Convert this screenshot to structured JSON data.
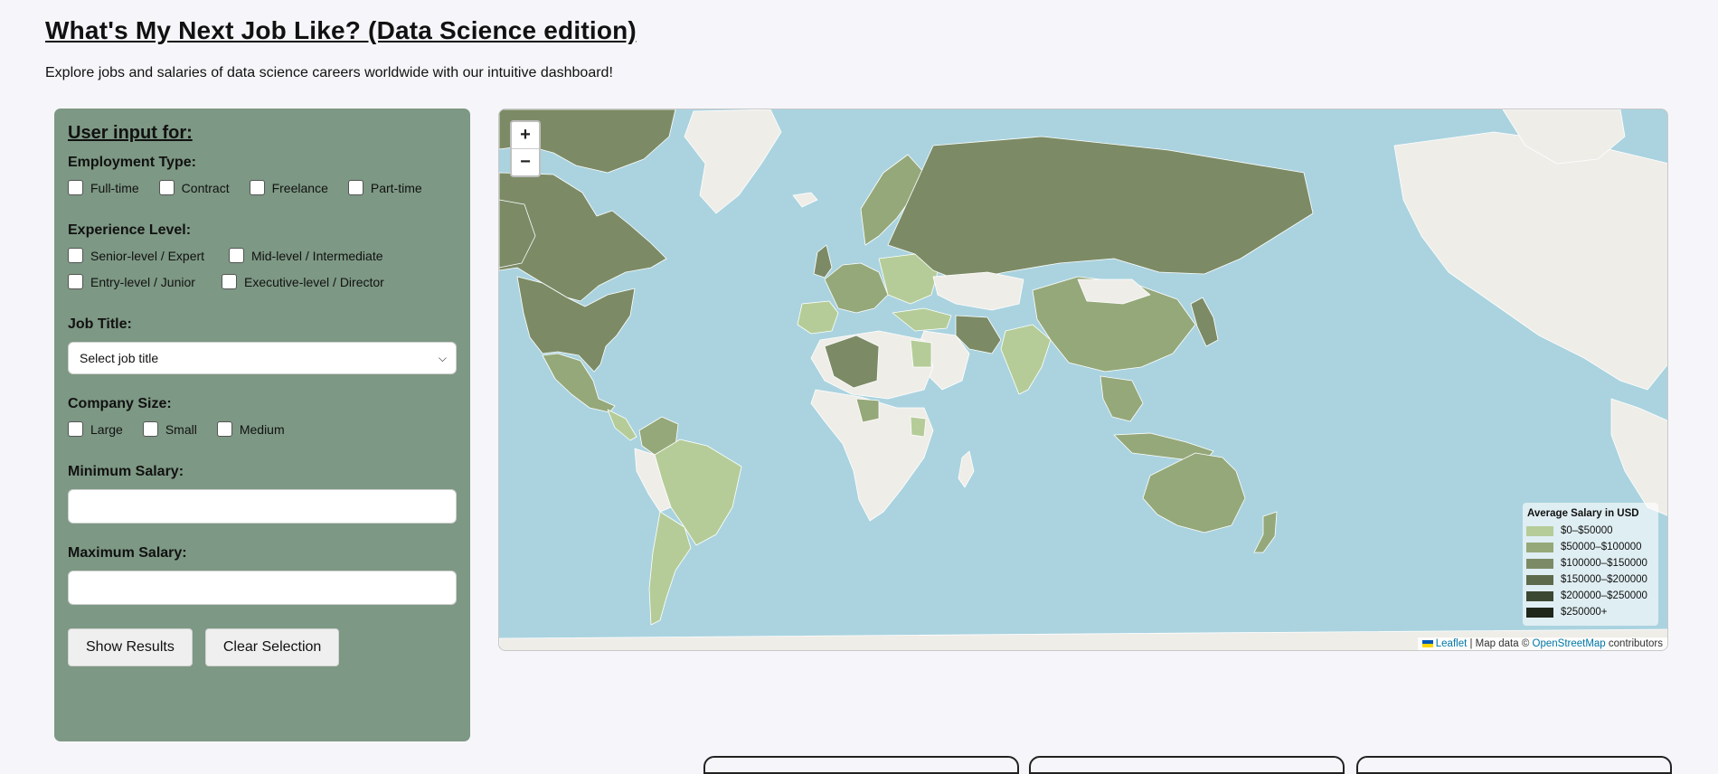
{
  "header": {
    "title": "What's My Next Job Like? (Data Science edition)",
    "subtitle": "Explore jobs and salaries of data science careers worldwide with our intuitive dashboard!"
  },
  "panel": {
    "heading": "User input for:",
    "employment_type": {
      "label": "Employment Type:",
      "options": [
        "Full-time",
        "Contract",
        "Freelance",
        "Part-time"
      ]
    },
    "experience_level": {
      "label": "Experience Level:",
      "options": [
        "Senior-level / Expert",
        "Mid-level / Intermediate",
        "Entry-level / Junior",
        "Executive-level / Director"
      ]
    },
    "job_title": {
      "label": "Job Title:",
      "selected": "Select job title"
    },
    "company_size": {
      "label": "Company Size:",
      "options": [
        "Large",
        "Small",
        "Medium"
      ]
    },
    "min_salary": {
      "label": "Minimum Salary:",
      "value": ""
    },
    "max_salary": {
      "label": "Maximum Salary:",
      "value": ""
    },
    "buttons": {
      "show": "Show Results",
      "clear": "Clear Selection"
    }
  },
  "map": {
    "zoom_in": "+",
    "zoom_out": "−",
    "legend": {
      "title": "Average Salary in USD",
      "items": [
        {
          "label": "$0–$50000",
          "color": "#b5cc98"
        },
        {
          "label": "$50000–$100000",
          "color": "#95a87a"
        },
        {
          "label": "$100000–$150000",
          "color": "#7c8b66"
        },
        {
          "label": "$150000–$200000",
          "color": "#5d6b4c"
        },
        {
          "label": "$200000–$250000",
          "color": "#3c4832"
        },
        {
          "label": "$250000+",
          "color": "#1f271b"
        }
      ]
    },
    "attribution": {
      "leaflet": "Leaflet",
      "separator": "| Map data ©",
      "osm": "OpenStreetMap",
      "suffix": "contributors"
    }
  }
}
